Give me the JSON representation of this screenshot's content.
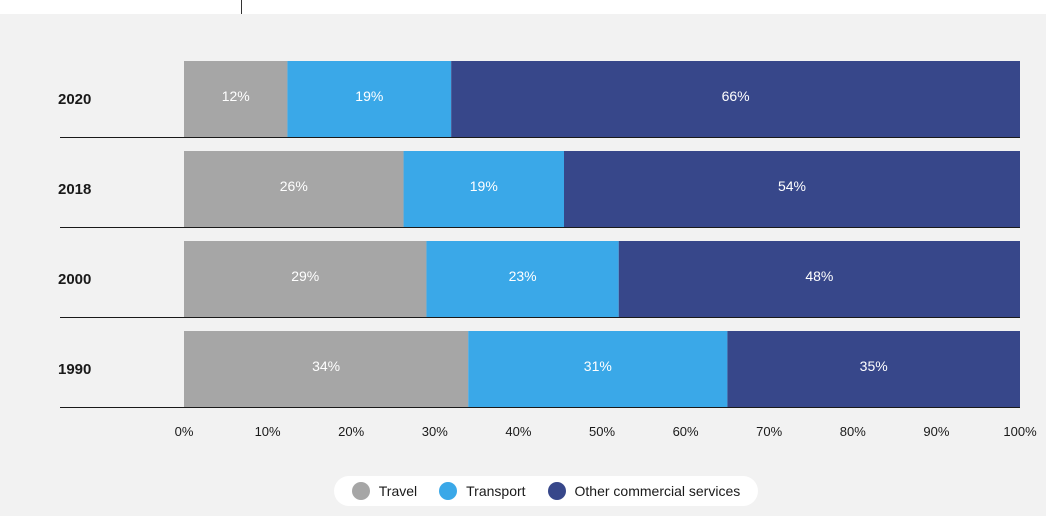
{
  "chart_data": {
    "type": "bar",
    "orientation": "horizontal",
    "stacked": true,
    "categories": [
      "2020",
      "2018",
      "2000",
      "1990"
    ],
    "series": [
      {
        "name": "Travel",
        "color": "#a6a6a6",
        "values": [
          12,
          26,
          29,
          34
        ],
        "labels": [
          "12%",
          "26%",
          "29%",
          "34%"
        ]
      },
      {
        "name": "Transport",
        "color": "#3aa8e8",
        "values": [
          19,
          19,
          23,
          31
        ],
        "labels": [
          "19%",
          "19%",
          "23%",
          "31%"
        ]
      },
      {
        "name": "Other commercial services",
        "color": "#37478a",
        "values": [
          66,
          54,
          48,
          35
        ],
        "labels": [
          "66%",
          "54%",
          "48%",
          "35%"
        ]
      }
    ],
    "xlim": [
      0,
      100
    ],
    "xticks": [
      "0%",
      "10%",
      "20%",
      "30%",
      "40%",
      "50%",
      "60%",
      "70%",
      "80%",
      "90%",
      "100%"
    ],
    "title": "",
    "xlabel": "",
    "ylabel": "",
    "grid": false,
    "legend_position": "bottom-center"
  }
}
